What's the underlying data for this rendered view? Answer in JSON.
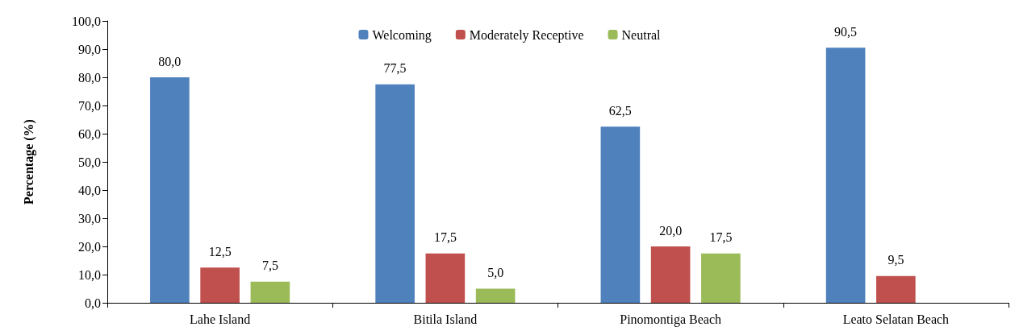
{
  "chart_data": {
    "type": "bar",
    "ylabel": "Percentage (%)",
    "categories": [
      "Lahe Island",
      "Bitila Island",
      "Pinomontiga Beach",
      "Leato Selatan Beach"
    ],
    "series": [
      {
        "name": "Welcoming",
        "color": "#4f81bd",
        "values": [
          80.0,
          77.5,
          62.5,
          90.5
        ],
        "value_labels": [
          "80,0",
          "77,5",
          "62,5",
          "90,5"
        ]
      },
      {
        "name": "Moderately Receptive",
        "color": "#c0504d",
        "values": [
          12.5,
          17.5,
          20.0,
          9.5
        ],
        "value_labels": [
          "12,5",
          "17,5",
          "20,0",
          "9,5"
        ]
      },
      {
        "name": "Neutral",
        "color": "#9bbb59",
        "values": [
          7.5,
          5.0,
          17.5,
          null
        ],
        "value_labels": [
          "7,5",
          "5,0",
          "17,5",
          null
        ]
      }
    ],
    "ylim": [
      0,
      100
    ],
    "yticks": [
      {
        "value": 0,
        "label": "0,0"
      },
      {
        "value": 10,
        "label": "10,0"
      },
      {
        "value": 20,
        "label": "20,0"
      },
      {
        "value": 30,
        "label": "30,0"
      },
      {
        "value": 40,
        "label": "40,0"
      },
      {
        "value": 50,
        "label": "50,0"
      },
      {
        "value": 60,
        "label": "60,0"
      },
      {
        "value": 70,
        "label": "70,0"
      },
      {
        "value": 80,
        "label": "80,0"
      },
      {
        "value": 90,
        "label": "90,0"
      },
      {
        "value": 100,
        "label": "100,0"
      }
    ],
    "grid": false,
    "legend": "top"
  }
}
